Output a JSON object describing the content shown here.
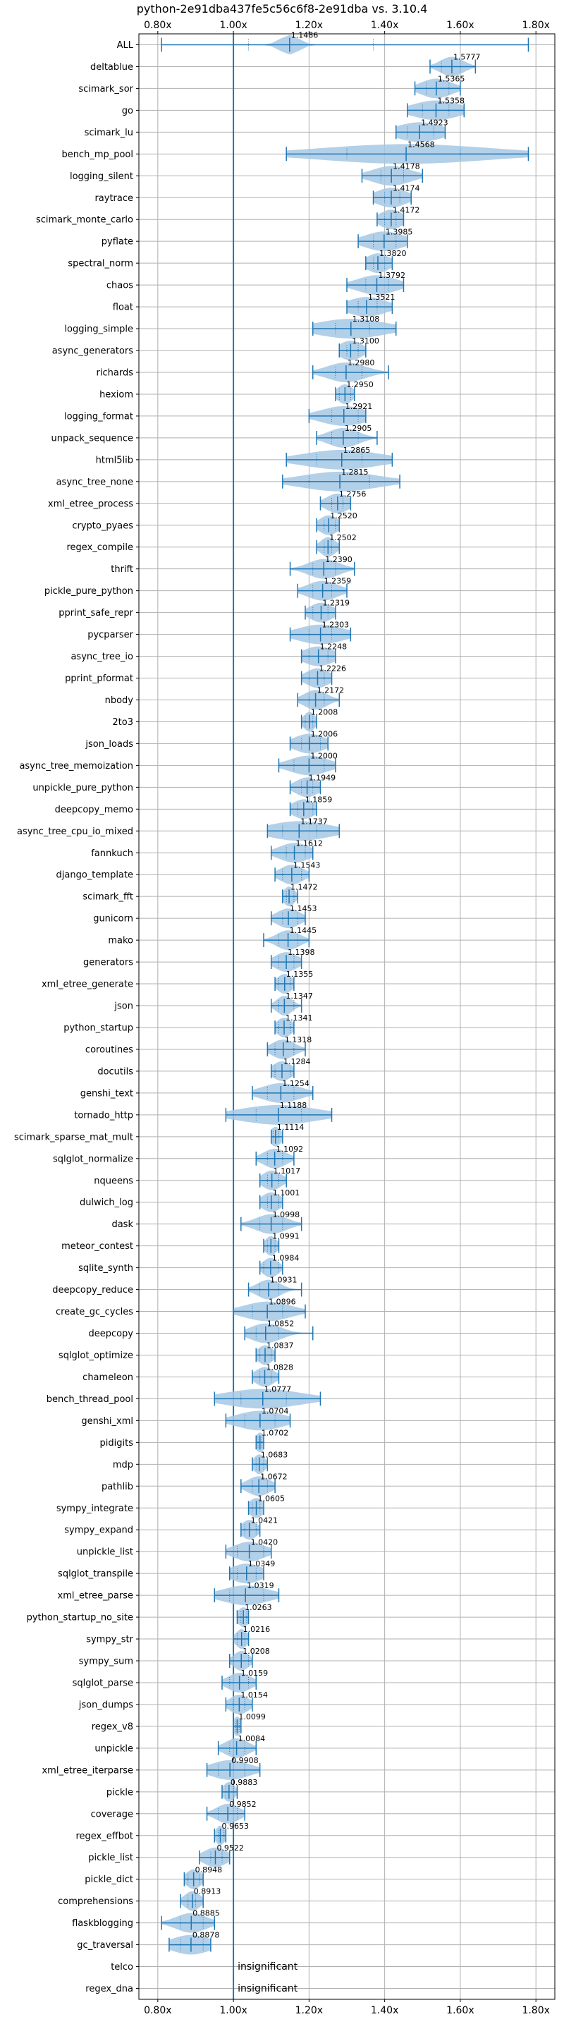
{
  "chart_data": {
    "type": "violin",
    "title": "python-2e91dba437fe5c56c6f8-2e91dba vs. 3.10.4",
    "xlim": [
      0.75,
      1.85
    ],
    "xticks": [
      0.8,
      1.0,
      1.2,
      1.4,
      1.6,
      1.8
    ],
    "xtick_labels": [
      "0.80x",
      "1.00x",
      "1.20x",
      "1.40x",
      "1.60x",
      "1.80x"
    ],
    "reference_line": 1.0,
    "grid": true,
    "colors": {
      "line": "#1f77b4",
      "violin": "#a6c8e5"
    },
    "benchmarks": [
      {
        "name": "ALL",
        "label": "1.1486",
        "center": 1.1486,
        "min": 0.81,
        "max": 1.78,
        "q1": 1.04,
        "q3": 1.37,
        "spread": 0.025
      },
      {
        "name": "deltablue",
        "label": "1.5777",
        "center": 1.5777,
        "min": 1.52,
        "max": 1.64,
        "q1": 1.55,
        "q3": 1.6,
        "spread": 0.03
      },
      {
        "name": "scimark_sor",
        "label": "1.5365",
        "center": 1.5365,
        "min": 1.48,
        "max": 1.6,
        "q1": 1.51,
        "q3": 1.57,
        "spread": 0.04
      },
      {
        "name": "go",
        "label": "1.5358",
        "center": 1.5358,
        "min": 1.46,
        "max": 1.61,
        "q1": 1.5,
        "q3": 1.57,
        "spread": 0.06
      },
      {
        "name": "scimark_lu",
        "label": "1.4923",
        "center": 1.4923,
        "min": 1.43,
        "max": 1.56,
        "q1": 1.46,
        "q3": 1.53,
        "spread": 0.06
      },
      {
        "name": "bench_mp_pool",
        "label": "1.4568",
        "center": 1.4568,
        "min": 1.14,
        "max": 1.78,
        "q1": 1.3,
        "q3": 1.6,
        "spread": 0.22
      },
      {
        "name": "logging_silent",
        "label": "1.4178",
        "center": 1.4178,
        "min": 1.34,
        "max": 1.5,
        "q1": 1.39,
        "q3": 1.45,
        "spread": 0.05
      },
      {
        "name": "raytrace",
        "label": "1.4174",
        "center": 1.4174,
        "min": 1.37,
        "max": 1.47,
        "q1": 1.4,
        "q3": 1.44,
        "spread": 0.04
      },
      {
        "name": "scimark_monte_carlo",
        "label": "1.4172",
        "center": 1.4172,
        "min": 1.38,
        "max": 1.45,
        "q1": 1.4,
        "q3": 1.43,
        "spread": 0.03
      },
      {
        "name": "pyflate",
        "label": "1.3985",
        "center": 1.3985,
        "min": 1.33,
        "max": 1.46,
        "q1": 1.37,
        "q3": 1.43,
        "spread": 0.05
      },
      {
        "name": "spectral_norm",
        "label": "1.3820",
        "center": 1.382,
        "min": 1.35,
        "max": 1.42,
        "q1": 1.37,
        "q3": 1.4,
        "spread": 0.03
      },
      {
        "name": "chaos",
        "label": "1.3792",
        "center": 1.3792,
        "min": 1.3,
        "max": 1.45,
        "q1": 1.35,
        "q3": 1.41,
        "spread": 0.05
      },
      {
        "name": "float",
        "label": "1.3521",
        "center": 1.3521,
        "min": 1.3,
        "max": 1.42,
        "q1": 1.33,
        "q3": 1.38,
        "spread": 0.05
      },
      {
        "name": "logging_simple",
        "label": "1.3108",
        "center": 1.3108,
        "min": 1.21,
        "max": 1.43,
        "q1": 1.27,
        "q3": 1.36,
        "spread": 0.09
      },
      {
        "name": "async_generators",
        "label": "1.3100",
        "center": 1.31,
        "min": 1.28,
        "max": 1.35,
        "q1": 1.3,
        "q3": 1.33,
        "spread": 0.03
      },
      {
        "name": "richards",
        "label": "1.2980",
        "center": 1.298,
        "min": 1.21,
        "max": 1.41,
        "q1": 1.27,
        "q3": 1.34,
        "spread": 0.05
      },
      {
        "name": "hexiom",
        "label": "1.2950",
        "center": 1.295,
        "min": 1.27,
        "max": 1.32,
        "q1": 1.28,
        "q3": 1.31,
        "spread": 0.02
      },
      {
        "name": "logging_format",
        "label": "1.2921",
        "center": 1.2921,
        "min": 1.2,
        "max": 1.35,
        "q1": 1.26,
        "q3": 1.33,
        "spread": 0.06
      },
      {
        "name": "unpack_sequence",
        "label": "1.2905",
        "center": 1.2905,
        "min": 1.22,
        "max": 1.38,
        "q1": 1.26,
        "q3": 1.33,
        "spread": 0.04
      },
      {
        "name": "html5lib",
        "label": "1.2865",
        "center": 1.2865,
        "min": 1.14,
        "max": 1.42,
        "q1": 1.22,
        "q3": 1.34,
        "spread": 0.1
      },
      {
        "name": "async_tree_none",
        "label": "1.2815",
        "center": 1.2815,
        "min": 1.13,
        "max": 1.44,
        "q1": 1.2,
        "q3": 1.36,
        "spread": 0.1
      },
      {
        "name": "xml_etree_process",
        "label": "1.2756",
        "center": 1.2756,
        "min": 1.23,
        "max": 1.31,
        "q1": 1.26,
        "q3": 1.29,
        "spread": 0.03
      },
      {
        "name": "crypto_pyaes",
        "label": "1.2520",
        "center": 1.252,
        "min": 1.22,
        "max": 1.28,
        "q1": 1.24,
        "q3": 1.27,
        "spread": 0.025
      },
      {
        "name": "regex_compile",
        "label": "1.2502",
        "center": 1.2502,
        "min": 1.22,
        "max": 1.28,
        "q1": 1.24,
        "q3": 1.26,
        "spread": 0.02
      },
      {
        "name": "thrift",
        "label": "1.2390",
        "center": 1.239,
        "min": 1.15,
        "max": 1.32,
        "q1": 1.21,
        "q3": 1.27,
        "spread": 0.04
      },
      {
        "name": "pickle_pure_python",
        "label": "1.2359",
        "center": 1.2359,
        "min": 1.17,
        "max": 1.3,
        "q1": 1.21,
        "q3": 1.26,
        "spread": 0.04
      },
      {
        "name": "pprint_safe_repr",
        "label": "1.2319",
        "center": 1.2319,
        "min": 1.19,
        "max": 1.27,
        "q1": 1.21,
        "q3": 1.25,
        "spread": 0.03
      },
      {
        "name": "pycparser",
        "label": "1.2303",
        "center": 1.2303,
        "min": 1.15,
        "max": 1.31,
        "q1": 1.2,
        "q3": 1.26,
        "spread": 0.06
      },
      {
        "name": "async_tree_io",
        "label": "1.2248",
        "center": 1.2248,
        "min": 1.18,
        "max": 1.27,
        "q1": 1.2,
        "q3": 1.25,
        "spread": 0.04
      },
      {
        "name": "pprint_pformat",
        "label": "1.2226",
        "center": 1.2226,
        "min": 1.18,
        "max": 1.26,
        "q1": 1.2,
        "q3": 1.24,
        "spread": 0.03
      },
      {
        "name": "nbody",
        "label": "1.2172",
        "center": 1.2172,
        "min": 1.17,
        "max": 1.28,
        "q1": 1.2,
        "q3": 1.24,
        "spread": 0.03
      },
      {
        "name": "2to3",
        "label": "1.2008",
        "center": 1.2008,
        "min": 1.18,
        "max": 1.22,
        "q1": 1.19,
        "q3": 1.21,
        "spread": 0.015
      },
      {
        "name": "json_loads",
        "label": "1.2006",
        "center": 1.2006,
        "min": 1.15,
        "max": 1.25,
        "q1": 1.18,
        "q3": 1.23,
        "spread": 0.04
      },
      {
        "name": "async_tree_memoization",
        "label": "1.2000",
        "center": 1.2,
        "min": 1.12,
        "max": 1.27,
        "q1": 1.16,
        "q3": 1.24,
        "spread": 0.05
      },
      {
        "name": "unpickle_pure_python",
        "label": "1.1949",
        "center": 1.1949,
        "min": 1.15,
        "max": 1.23,
        "q1": 1.18,
        "q3": 1.21,
        "spread": 0.03
      },
      {
        "name": "deepcopy_memo",
        "label": "1.1859",
        "center": 1.1859,
        "min": 1.15,
        "max": 1.22,
        "q1": 1.17,
        "q3": 1.21,
        "spread": 0.03
      },
      {
        "name": "async_tree_cpu_io_mixed",
        "label": "1.1737",
        "center": 1.1737,
        "min": 1.09,
        "max": 1.28,
        "q1": 1.13,
        "q3": 1.22,
        "spread": 0.08
      },
      {
        "name": "fannkuch",
        "label": "1.1612",
        "center": 1.1612,
        "min": 1.1,
        "max": 1.21,
        "q1": 1.14,
        "q3": 1.19,
        "spread": 0.04
      },
      {
        "name": "django_template",
        "label": "1.1543",
        "center": 1.1543,
        "min": 1.11,
        "max": 1.2,
        "q1": 1.13,
        "q3": 1.18,
        "spread": 0.03
      },
      {
        "name": "scimark_fft",
        "label": "1.1472",
        "center": 1.1472,
        "min": 1.13,
        "max": 1.17,
        "q1": 1.14,
        "q3": 1.16,
        "spread": 0.015
      },
      {
        "name": "gunicorn",
        "label": "1.1453",
        "center": 1.1453,
        "min": 1.1,
        "max": 1.19,
        "q1": 1.13,
        "q3": 1.17,
        "spread": 0.03
      },
      {
        "name": "mako",
        "label": "1.1445",
        "center": 1.1445,
        "min": 1.08,
        "max": 1.2,
        "q1": 1.12,
        "q3": 1.17,
        "spread": 0.03
      },
      {
        "name": "generators",
        "label": "1.1398",
        "center": 1.1398,
        "min": 1.1,
        "max": 1.18,
        "q1": 1.12,
        "q3": 1.16,
        "spread": 0.03
      },
      {
        "name": "xml_etree_generate",
        "label": "1.1355",
        "center": 1.1355,
        "min": 1.11,
        "max": 1.16,
        "q1": 1.12,
        "q3": 1.15,
        "spread": 0.02
      },
      {
        "name": "json",
        "label": "1.1347",
        "center": 1.1347,
        "min": 1.1,
        "max": 1.18,
        "q1": 1.12,
        "q3": 1.16,
        "spread": 0.02
      },
      {
        "name": "python_startup",
        "label": "1.1341",
        "center": 1.1341,
        "min": 1.11,
        "max": 1.16,
        "q1": 1.12,
        "q3": 1.15,
        "spread": 0.02
      },
      {
        "name": "coroutines",
        "label": "1.1318",
        "center": 1.1318,
        "min": 1.09,
        "max": 1.19,
        "q1": 1.11,
        "q3": 1.16,
        "spread": 0.03
      },
      {
        "name": "docutils",
        "label": "1.1284",
        "center": 1.1284,
        "min": 1.1,
        "max": 1.16,
        "q1": 1.11,
        "q3": 1.15,
        "spread": 0.025
      },
      {
        "name": "genshi_text",
        "label": "1.1254",
        "center": 1.1254,
        "min": 1.05,
        "max": 1.21,
        "q1": 1.09,
        "q3": 1.16,
        "spread": 0.05
      },
      {
        "name": "tornado_http",
        "label": "1.1188",
        "center": 1.1188,
        "min": 0.98,
        "max": 1.26,
        "q1": 1.06,
        "q3": 1.18,
        "spread": 0.1
      },
      {
        "name": "scimark_sparse_mat_mult",
        "label": "1.1114",
        "center": 1.1114,
        "min": 1.1,
        "max": 1.13,
        "q1": 1.105,
        "q3": 1.12,
        "spread": 0.015
      },
      {
        "name": "sqlglot_normalize",
        "label": "1.1092",
        "center": 1.1092,
        "min": 1.06,
        "max": 1.16,
        "q1": 1.09,
        "q3": 1.13,
        "spread": 0.03
      },
      {
        "name": "nqueens",
        "label": "1.1017",
        "center": 1.1017,
        "min": 1.07,
        "max": 1.14,
        "q1": 1.09,
        "q3": 1.12,
        "spread": 0.025
      },
      {
        "name": "dulwich_log",
        "label": "1.1001",
        "center": 1.1001,
        "min": 1.07,
        "max": 1.13,
        "q1": 1.09,
        "q3": 1.12,
        "spread": 0.025
      },
      {
        "name": "dask",
        "label": "1.0998",
        "center": 1.0998,
        "min": 1.02,
        "max": 1.18,
        "q1": 1.07,
        "q3": 1.13,
        "spread": 0.04
      },
      {
        "name": "meteor_contest",
        "label": "1.0991",
        "center": 1.0991,
        "min": 1.08,
        "max": 1.12,
        "q1": 1.09,
        "q3": 1.11,
        "spread": 0.015
      },
      {
        "name": "sqlite_synth",
        "label": "1.0984",
        "center": 1.0984,
        "min": 1.07,
        "max": 1.13,
        "q1": 1.08,
        "q3": 1.12,
        "spread": 0.02
      },
      {
        "name": "deepcopy_reduce",
        "label": "1.0931",
        "center": 1.0931,
        "min": 1.04,
        "max": 1.18,
        "q1": 1.07,
        "q3": 1.12,
        "spread": 0.03
      },
      {
        "name": "create_gc_cycles",
        "label": "1.0896",
        "center": 1.0896,
        "min": 1.0,
        "max": 1.19,
        "q1": 1.05,
        "q3": 1.13,
        "spread": 0.06
      },
      {
        "name": "deepcopy",
        "label": "1.0852",
        "center": 1.0852,
        "min": 1.03,
        "max": 1.21,
        "q1": 1.06,
        "q3": 1.12,
        "spread": 0.04
      },
      {
        "name": "sqlglot_optimize",
        "label": "1.0837",
        "center": 1.0837,
        "min": 1.06,
        "max": 1.11,
        "q1": 1.07,
        "q3": 1.1,
        "spread": 0.02
      },
      {
        "name": "chameleon",
        "label": "1.0828",
        "center": 1.0828,
        "min": 1.05,
        "max": 1.12,
        "q1": 1.07,
        "q3": 1.1,
        "spread": 0.025
      },
      {
        "name": "bench_thread_pool",
        "label": "1.0777",
        "center": 1.0777,
        "min": 0.95,
        "max": 1.23,
        "q1": 1.02,
        "q3": 1.14,
        "spread": 0.1
      },
      {
        "name": "genshi_xml",
        "label": "1.0704",
        "center": 1.0704,
        "min": 0.98,
        "max": 1.15,
        "q1": 1.03,
        "q3": 1.11,
        "spread": 0.06
      },
      {
        "name": "pidigits",
        "label": "1.0702",
        "center": 1.0702,
        "min": 1.06,
        "max": 1.08,
        "q1": 1.065,
        "q3": 1.075,
        "spread": 0.012
      },
      {
        "name": "mdp",
        "label": "1.0683",
        "center": 1.0683,
        "min": 1.05,
        "max": 1.09,
        "q1": 1.06,
        "q3": 1.08,
        "spread": 0.015
      },
      {
        "name": "pathlib",
        "label": "1.0672",
        "center": 1.0672,
        "min": 1.02,
        "max": 1.11,
        "q1": 1.05,
        "q3": 1.09,
        "spread": 0.03
      },
      {
        "name": "sympy_integrate",
        "label": "1.0605",
        "center": 1.0605,
        "min": 1.04,
        "max": 1.08,
        "q1": 1.05,
        "q3": 1.07,
        "spread": 0.02
      },
      {
        "name": "sympy_expand",
        "label": "1.0421",
        "center": 1.0421,
        "min": 1.02,
        "max": 1.07,
        "q1": 1.03,
        "q3": 1.06,
        "spread": 0.02
      },
      {
        "name": "unpickle_list",
        "label": "1.0420",
        "center": 1.042,
        "min": 0.98,
        "max": 1.1,
        "q1": 1.01,
        "q3": 1.08,
        "spread": 0.04
      },
      {
        "name": "sqlglot_transpile",
        "label": "1.0349",
        "center": 1.0349,
        "min": 0.99,
        "max": 1.08,
        "q1": 1.01,
        "q3": 1.06,
        "spread": 0.04
      },
      {
        "name": "xml_etree_parse",
        "label": "1.0319",
        "center": 1.0319,
        "min": 0.95,
        "max": 1.12,
        "q1": 0.99,
        "q3": 1.08,
        "spread": 0.06
      },
      {
        "name": "python_startup_no_site",
        "label": "1.0263",
        "center": 1.0263,
        "min": 1.01,
        "max": 1.04,
        "q1": 1.02,
        "q3": 1.035,
        "spread": 0.015
      },
      {
        "name": "sympy_str",
        "label": "1.0216",
        "center": 1.0216,
        "min": 1.0,
        "max": 1.04,
        "q1": 1.01,
        "q3": 1.03,
        "spread": 0.015
      },
      {
        "name": "sympy_sum",
        "label": "1.0208",
        "center": 1.0208,
        "min": 0.99,
        "max": 1.05,
        "q1": 1.0,
        "q3": 1.04,
        "spread": 0.02
      },
      {
        "name": "sqlglot_parse",
        "label": "1.0159",
        "center": 1.0159,
        "min": 0.97,
        "max": 1.06,
        "q1": 0.99,
        "q3": 1.04,
        "spread": 0.03
      },
      {
        "name": "json_dumps",
        "label": "1.0154",
        "center": 1.0154,
        "min": 0.98,
        "max": 1.05,
        "q1": 1.0,
        "q3": 1.03,
        "spread": 0.025
      },
      {
        "name": "regex_v8",
        "label": "1.0099",
        "center": 1.0099,
        "min": 1.0,
        "max": 1.02,
        "q1": 1.005,
        "q3": 1.015,
        "spread": 0.01
      },
      {
        "name": "unpickle",
        "label": "1.0084",
        "center": 1.0084,
        "min": 0.96,
        "max": 1.06,
        "q1": 0.99,
        "q3": 1.03,
        "spread": 0.03
      },
      {
        "name": "xml_etree_iterparse",
        "label": "0.9908",
        "center": 0.9908,
        "min": 0.93,
        "max": 1.07,
        "q1": 0.96,
        "q3": 1.03,
        "spread": 0.05
      },
      {
        "name": "pickle",
        "label": "0.9883",
        "center": 0.9883,
        "min": 0.97,
        "max": 1.01,
        "q1": 0.98,
        "q3": 1.0,
        "spread": 0.015
      },
      {
        "name": "coverage",
        "label": "0.9852",
        "center": 0.9852,
        "min": 0.93,
        "max": 1.03,
        "q1": 0.96,
        "q3": 1.01,
        "spread": 0.03
      },
      {
        "name": "regex_effbot",
        "label": "0.9653",
        "center": 0.9653,
        "min": 0.95,
        "max": 0.98,
        "q1": 0.96,
        "q3": 0.975,
        "spread": 0.012
      },
      {
        "name": "pickle_list",
        "label": "0.9522",
        "center": 0.9522,
        "min": 0.91,
        "max": 0.99,
        "q1": 0.94,
        "q3": 0.97,
        "spread": 0.03
      },
      {
        "name": "pickle_dict",
        "label": "0.8948",
        "center": 0.8948,
        "min": 0.87,
        "max": 0.92,
        "q1": 0.88,
        "q3": 0.91,
        "spread": 0.02
      },
      {
        "name": "comprehensions",
        "label": "0.8913",
        "center": 0.8913,
        "min": 0.86,
        "max": 0.92,
        "q1": 0.88,
        "q3": 0.9,
        "spread": 0.02
      },
      {
        "name": "flaskblogging",
        "label": "0.8885",
        "center": 0.8885,
        "min": 0.81,
        "max": 0.95,
        "q1": 0.86,
        "q3": 0.92,
        "spread": 0.04
      },
      {
        "name": "gc_traversal",
        "label": "0.8878",
        "center": 0.8878,
        "min": 0.83,
        "max": 0.94,
        "q1": 0.86,
        "q3": 0.92,
        "spread": 0.05
      },
      {
        "name": "telco",
        "label": "insignificant",
        "center": null
      },
      {
        "name": "regex_dna",
        "label": "insignificant",
        "center": null
      }
    ]
  }
}
